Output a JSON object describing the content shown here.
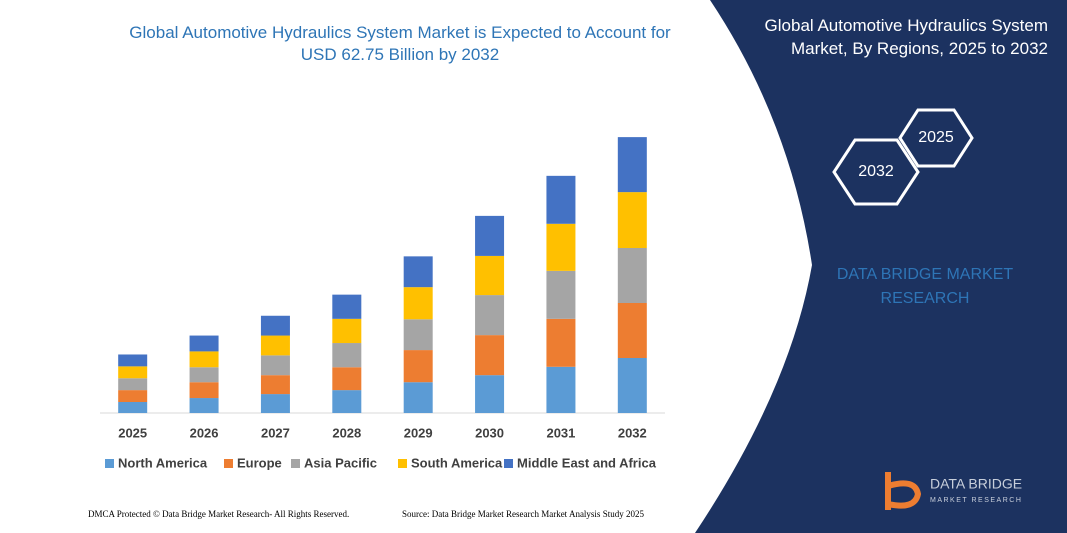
{
  "chart_data": {
    "type": "bar",
    "stacked": true,
    "title": "Global Automotive Hydraulics System Market is Expected to Account for USD 62.75 Billion by 2032",
    "categories": [
      "2025",
      "2026",
      "2027",
      "2028",
      "2029",
      "2030",
      "2031",
      "2032"
    ],
    "series": [
      {
        "name": "North America",
        "color": "#5b9bd5",
        "values": [
          2.5,
          3.4,
          4.3,
          5.2,
          7.0,
          8.6,
          10.5,
          12.5
        ]
      },
      {
        "name": "Europe",
        "color": "#ed7d31",
        "values": [
          2.7,
          3.6,
          4.3,
          5.2,
          7.3,
          9.1,
          10.9,
          12.5
        ]
      },
      {
        "name": "Asia Pacific",
        "color": "#a5a5a5",
        "values": [
          2.7,
          3.4,
          4.5,
          5.5,
          7.0,
          9.1,
          10.9,
          12.5
        ]
      },
      {
        "name": "South America",
        "color": "#ffc000",
        "values": [
          2.7,
          3.6,
          4.5,
          5.5,
          7.3,
          8.9,
          10.7,
          12.7
        ]
      },
      {
        "name": "Middle East and Africa",
        "color": "#4472c4",
        "values": [
          2.7,
          3.6,
          4.5,
          5.5,
          7.0,
          9.1,
          10.9,
          12.5
        ]
      }
    ],
    "ylim": [
      0,
      70
    ],
    "grid": false,
    "legend": "bottom"
  },
  "panel": {
    "title": "Global Automotive Hydraulics System Market, By Regions, 2025 to 2032",
    "hex_start": "2025",
    "hex_end": "2032",
    "brand": "DATA BRIDGE MARKET RESEARCH",
    "logo_name": "DATA BRIDGE",
    "logo_sub": "MARKET RESEARCH"
  },
  "footer": {
    "left": "DMCA Protected © Data Bridge Market Research- All Rights Reserved.",
    "right": "Source: Data Bridge Market Research Market Analysis Study 2025"
  }
}
